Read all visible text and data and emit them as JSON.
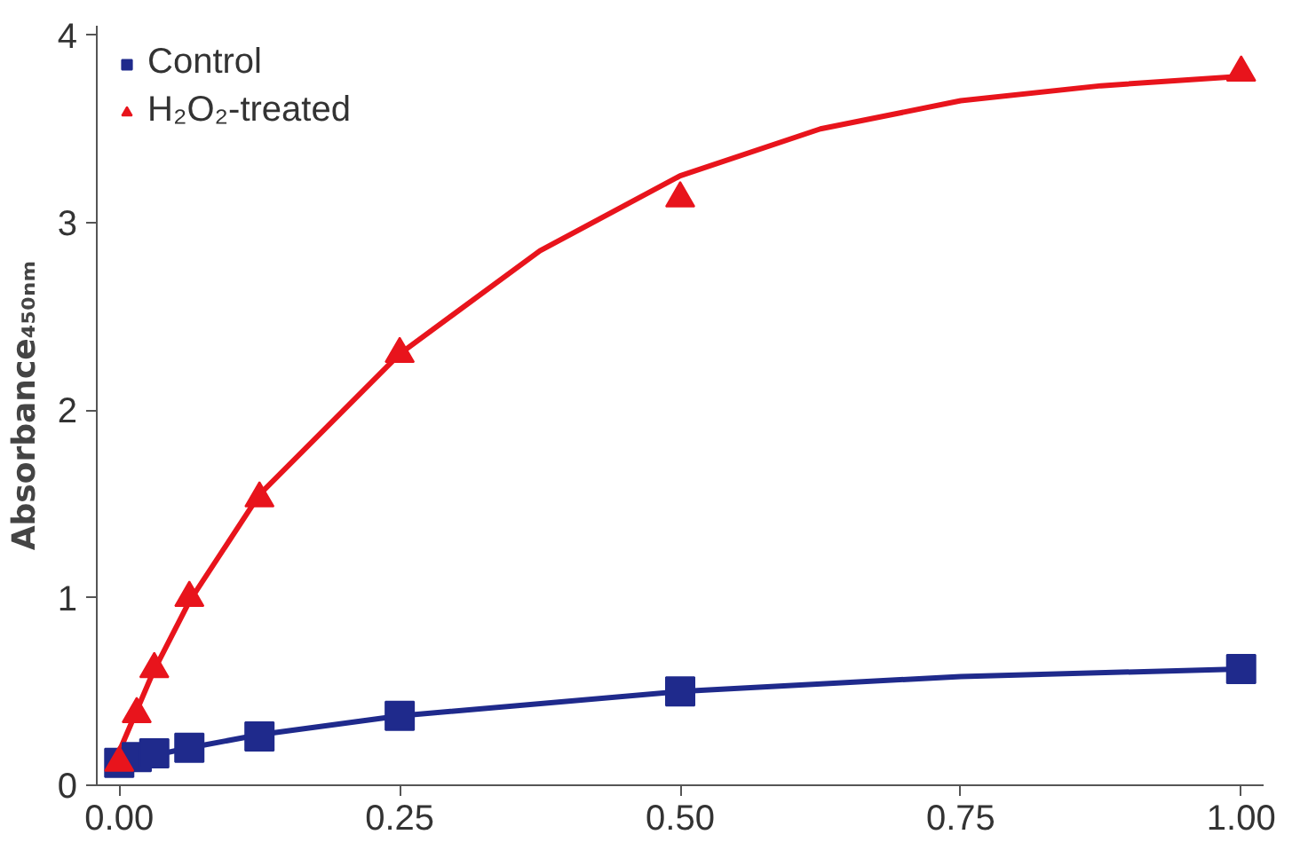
{
  "chart_data": {
    "type": "scatter",
    "ylabel": "Absorbance₄₅₀ₙₘ",
    "xlim": [
      -0.02,
      1.02
    ],
    "ylim": [
      0,
      4.05
    ],
    "xticks": [
      {
        "value": 0,
        "label": "0.00"
      },
      {
        "value": 0.25,
        "label": "0.25"
      },
      {
        "value": 0.5,
        "label": "0.50"
      },
      {
        "value": 0.75,
        "label": "0.75"
      },
      {
        "value": 1,
        "label": "1.00"
      }
    ],
    "yticks": [
      0,
      1,
      2,
      3,
      4
    ],
    "grid": false,
    "legend": "top left",
    "series": [
      {
        "type": "line",
        "color": "#e8141c",
        "x": [
          0,
          0.03,
          0.0625,
          0.125,
          0.25,
          0.375,
          0.5,
          0.625,
          0.75,
          0.875,
          1
        ],
        "values": [
          0.18,
          0.6,
          0.98,
          1.55,
          2.3,
          2.85,
          3.25,
          3.5,
          3.65,
          3.73,
          3.78
        ]
      },
      {
        "type": "line",
        "color": "#1f2a8c",
        "x": [
          0,
          0.0625,
          0.125,
          0.25,
          0.5,
          0.75,
          1
        ],
        "values": [
          0.12,
          0.2,
          0.27,
          0.37,
          0.5,
          0.58,
          0.62
        ]
      },
      {
        "name": "Control",
        "marker": "square",
        "color": "#1f2a8c",
        "x": [
          0,
          0.0156,
          0.03125,
          0.0625,
          0.125,
          0.25,
          0.5,
          1
        ],
        "values": [
          0.12,
          0.15,
          0.17,
          0.2,
          0.26,
          0.37,
          0.5,
          0.62
        ]
      },
      {
        "name": "H₂O₂-treated",
        "marker": "triangle",
        "color": "#e8141c",
        "x": [
          0,
          0.0156,
          0.03125,
          0.0625,
          0.125,
          0.25,
          0.5,
          1
        ],
        "values": [
          0.12,
          0.38,
          0.62,
          1.0,
          1.53,
          2.3,
          3.13,
          3.8
        ]
      }
    ]
  }
}
